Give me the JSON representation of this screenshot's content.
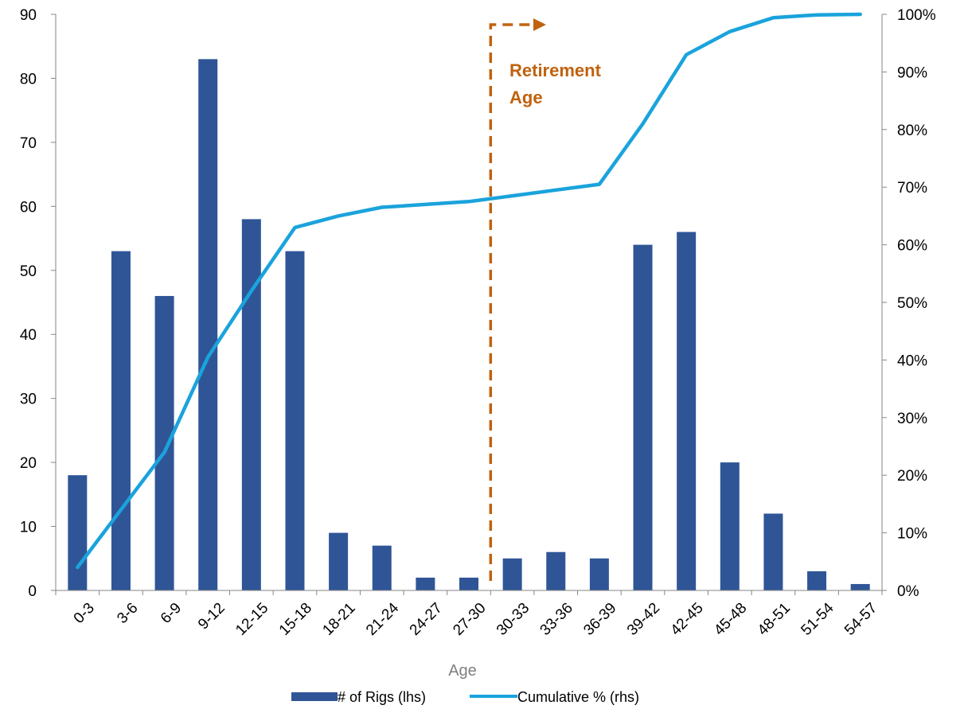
{
  "chart_data": {
    "type": "bar",
    "categories": [
      "0-3",
      "3-6",
      "6-9",
      "9-12",
      "12-15",
      "15-18",
      "18-21",
      "21-24",
      "24-27",
      "27-30",
      "30-33",
      "33-36",
      "36-39",
      "39-42",
      "42-45",
      "45-48",
      "48-51",
      "51-54",
      "54-57"
    ],
    "series": [
      {
        "name": "# of Rigs (lhs)",
        "type": "bar",
        "axis": "left",
        "color": "#2f5597",
        "values": [
          18,
          53,
          46,
          83,
          58,
          53,
          9,
          7,
          2,
          2,
          5,
          6,
          5,
          54,
          56,
          20,
          12,
          3,
          1
        ]
      },
      {
        "name": "Cumulative % (rhs)",
        "type": "line",
        "axis": "right",
        "color": "#1aa3dc",
        "values": [
          4,
          14,
          24,
          40.5,
          52,
          63,
          65,
          66.5,
          67,
          67.5,
          68.5,
          69.5,
          70.5,
          81,
          93,
          97,
          99.4,
          99.9,
          100
        ]
      }
    ],
    "xlabel": "Age",
    "ylim_left": [
      0,
      90
    ],
    "yticks_left": [
      "0",
      "10",
      "20",
      "30",
      "40",
      "50",
      "60",
      "70",
      "80",
      "90"
    ],
    "ylim_right": [
      0,
      100
    ],
    "yticks_right": [
      "0%",
      "10%",
      "20%",
      "30%",
      "40%",
      "50%",
      "60%",
      "70%",
      "80%",
      "90%",
      "100%"
    ],
    "annotation": {
      "text_line1": "Retirement",
      "text_line2": "Age",
      "x_category_boundary": 10,
      "color": "#c0620e"
    },
    "legend_placement": "bottom-center",
    "grid": false
  }
}
